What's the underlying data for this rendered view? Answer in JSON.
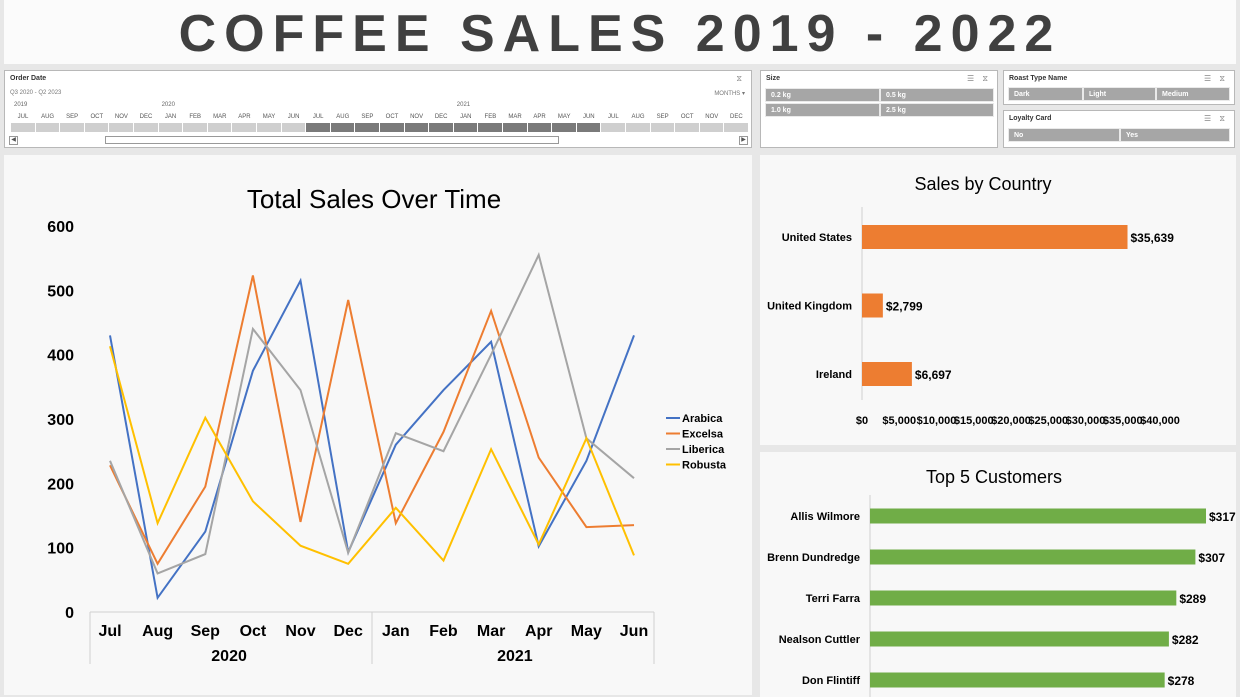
{
  "dashboard": {
    "title": "COFFEE SALES 2019 - 2022"
  },
  "timeline": {
    "header": "Order Date",
    "range": "Q3 2020 - Q2 2023",
    "level": "MONTHS",
    "years": [
      "2019",
      "2020",
      "2021"
    ],
    "months": [
      "JUL",
      "AUG",
      "SEP",
      "OCT",
      "NOV",
      "DEC",
      "JAN",
      "FEB",
      "MAR",
      "APR",
      "MAY",
      "JUN",
      "JUL",
      "AUG",
      "SEP",
      "OCT",
      "NOV",
      "DEC",
      "JAN",
      "FEB",
      "MAR",
      "APR",
      "MAY",
      "JUN",
      "JUL",
      "AUG",
      "SEP",
      "OCT",
      "NOV",
      "DEC"
    ],
    "selected_from_index": 12,
    "selected_to_index": 23
  },
  "size_slicer": {
    "header": "Size",
    "options": [
      "0.2 kg",
      "0.5 kg",
      "1.0 kg",
      "2.5 kg"
    ]
  },
  "roast_slicer": {
    "header": "Roast Type Name",
    "options": [
      "Dark",
      "Light",
      "Medium"
    ]
  },
  "loyalty_slicer": {
    "header": "Loyalty Card",
    "options": [
      "No",
      "Yes"
    ]
  },
  "chart_data": [
    {
      "type": "line",
      "title": "Total Sales Over Time",
      "categories": [
        "Jul",
        "Aug",
        "Sep",
        "Oct",
        "Nov",
        "Dec",
        "Jan",
        "Feb",
        "Mar",
        "Apr",
        "May",
        "Jun"
      ],
      "category_groups": [
        {
          "label": "2020",
          "count": 6
        },
        {
          "label": "2021",
          "count": 6
        }
      ],
      "ylim": [
        0,
        600
      ],
      "yticks": [
        0,
        100,
        200,
        300,
        400,
        500,
        600
      ],
      "legend_position": "right",
      "series": [
        {
          "name": "Arabica",
          "color": "#4472c4",
          "values": [
            430,
            22,
            125,
            375,
            515,
            93,
            260,
            345,
            420,
            102,
            235,
            430
          ]
        },
        {
          "name": "Excelsa",
          "color": "#ed7d31",
          "values": [
            228,
            75,
            195,
            523,
            140,
            485,
            138,
            280,
            468,
            240,
            132,
            135
          ]
        },
        {
          "name": "Liberica",
          "color": "#a5a5a5",
          "values": [
            235,
            60,
            90,
            440,
            345,
            92,
            278,
            250,
            400,
            555,
            270,
            208
          ]
        },
        {
          "name": "Robusta",
          "color": "#ffc000",
          "values": [
            413,
            138,
            302,
            172,
            103,
            75,
            162,
            80,
            253,
            105,
            270,
            88
          ]
        }
      ]
    },
    {
      "type": "bar",
      "orientation": "horizontal",
      "title": "Sales by Country",
      "color": "#ed7d31",
      "categories": [
        "United States",
        "United Kingdom",
        "Ireland"
      ],
      "values": [
        35639,
        2799,
        6697
      ],
      "value_labels": [
        "$35,639",
        "$2,799",
        "$6,697"
      ],
      "xlim": [
        0,
        40000
      ],
      "xtick_labels": [
        "$0",
        "$5,000",
        "$10,000",
        "$15,000",
        "$20,000",
        "$25,000",
        "$30,000",
        "$35,000",
        "$40,000"
      ]
    },
    {
      "type": "bar",
      "orientation": "horizontal",
      "title": "Top 5 Customers",
      "color": "#70ad47",
      "categories": [
        "Allis Wilmore",
        "Brenn Dundredge",
        "Terri Farra",
        "Nealson Cuttler",
        "Don Flintiff"
      ],
      "values": [
        317,
        307,
        289,
        282,
        278
      ],
      "value_labels": [
        "$317",
        "$307",
        "$289",
        "$282",
        "$278"
      ]
    }
  ]
}
